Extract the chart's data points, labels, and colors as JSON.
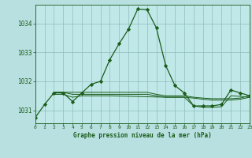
{
  "background_color": "#b8e0e0",
  "plot_bg_color": "#c0e8e8",
  "grid_color": "#90bcbc",
  "line_color": "#1a5c1a",
  "marker_color": "#1a5c1a",
  "xlabel": "Graphe pression niveau de la mer (hPa)",
  "xlim": [
    0,
    23
  ],
  "ylim": [
    1030.55,
    1034.65
  ],
  "yticks": [
    1031,
    1032,
    1033,
    1034
  ],
  "xticks": [
    0,
    1,
    2,
    3,
    4,
    5,
    6,
    7,
    8,
    9,
    10,
    11,
    12,
    13,
    14,
    15,
    16,
    17,
    18,
    19,
    20,
    21,
    22,
    23
  ],
  "main_series": {
    "x": [
      0,
      1,
      2,
      3,
      4,
      5,
      6,
      7,
      8,
      9,
      10,
      11,
      12,
      13,
      14,
      15,
      16,
      17,
      18,
      19,
      20,
      21,
      22,
      23
    ],
    "y": [
      1030.75,
      1031.2,
      1031.6,
      1031.6,
      1031.3,
      1031.6,
      1031.9,
      1032.0,
      1032.75,
      1033.3,
      1033.8,
      1034.5,
      1034.48,
      1033.85,
      1032.55,
      1031.85,
      1031.6,
      1031.15,
      1031.15,
      1031.15,
      1031.2,
      1031.7,
      1031.6,
      1031.5
    ]
  },
  "flat_series1": {
    "x": [
      2,
      3,
      4,
      5,
      6,
      7,
      8,
      9,
      10,
      11,
      12,
      13,
      14,
      15,
      16,
      17,
      18,
      19,
      20,
      21,
      22,
      23
    ],
    "y": [
      1031.62,
      1031.62,
      1031.62,
      1031.62,
      1031.62,
      1031.62,
      1031.62,
      1031.62,
      1031.62,
      1031.62,
      1031.62,
      1031.55,
      1031.5,
      1031.5,
      1031.5,
      1031.45,
      1031.42,
      1031.4,
      1031.4,
      1031.4,
      1031.42,
      1031.5
    ]
  },
  "flat_series2": {
    "x": [
      2,
      3,
      4,
      5,
      6,
      7,
      8,
      9,
      10,
      11,
      12,
      13,
      14,
      15,
      16,
      17,
      18,
      19,
      20,
      21,
      22,
      23
    ],
    "y": [
      1031.62,
      1031.62,
      1031.55,
      1031.55,
      1031.55,
      1031.55,
      1031.55,
      1031.55,
      1031.55,
      1031.55,
      1031.55,
      1031.5,
      1031.45,
      1031.45,
      1031.45,
      1031.42,
      1031.38,
      1031.35,
      1031.35,
      1031.35,
      1031.38,
      1031.45
    ]
  },
  "flat_series3": {
    "x": [
      2,
      3,
      4,
      5,
      6,
      7,
      8,
      14,
      15,
      16,
      17,
      18,
      19,
      20,
      21,
      22,
      23
    ],
    "y": [
      1031.55,
      1031.55,
      1031.45,
      1031.5,
      1031.5,
      1031.5,
      1031.5,
      1031.45,
      1031.45,
      1031.45,
      1031.15,
      1031.1,
      1031.1,
      1031.12,
      1031.5,
      1031.48,
      1031.45
    ]
  }
}
